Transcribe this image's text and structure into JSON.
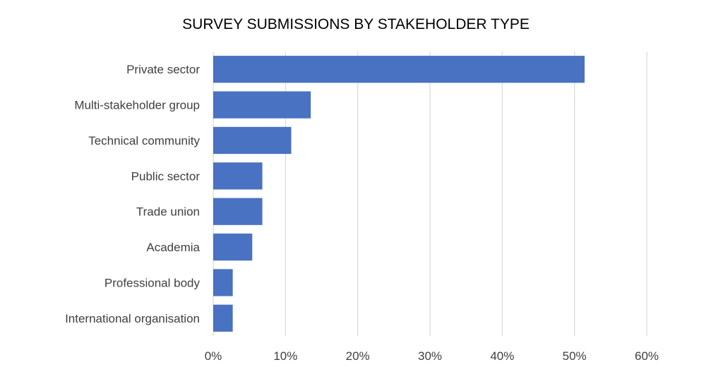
{
  "chart_data": {
    "type": "bar",
    "orientation": "horizontal",
    "title": "SURVEY SUBMISSIONS BY STAKEHOLDER TYPE",
    "xlabel": "",
    "ylabel": "",
    "categories": [
      "Private sector",
      "Multi-stakeholder group",
      "Technical community",
      "Public sector",
      "Trade union",
      "Academia",
      "Professional body",
      "International organisation"
    ],
    "values": [
      51.4,
      13.5,
      10.8,
      6.8,
      6.8,
      5.4,
      2.7,
      2.7
    ],
    "value_unit": "%",
    "xlim": [
      0,
      60
    ],
    "xticks": [
      0,
      10,
      20,
      30,
      40,
      50,
      60
    ],
    "xtick_labels": [
      "0%",
      "10%",
      "20%",
      "30%",
      "40%",
      "50%",
      "60%"
    ],
    "grid": "vertical",
    "legend": "none",
    "colors": {
      "bar": "#4a72c2",
      "grid": "#d9d9d9",
      "label": "#404040",
      "title": "#000000"
    }
  }
}
